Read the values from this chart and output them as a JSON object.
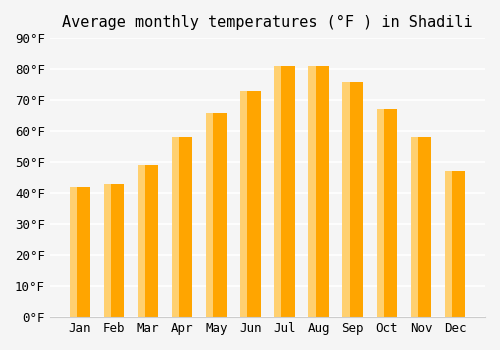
{
  "title": "Average monthly temperatures (°F ) in Shadili",
  "months": [
    "Jan",
    "Feb",
    "Mar",
    "Apr",
    "May",
    "Jun",
    "Jul",
    "Aug",
    "Sep",
    "Oct",
    "Nov",
    "Dec"
  ],
  "values": [
    42,
    43,
    49,
    58,
    66,
    73,
    81,
    81,
    76,
    67,
    58,
    47
  ],
  "bar_color_main": "#FFA500",
  "bar_color_light": "#FFD070",
  "ylim": [
    0,
    90
  ],
  "yticks": [
    0,
    10,
    20,
    30,
    40,
    50,
    60,
    70,
    80,
    90
  ],
  "ylabel_suffix": "°F",
  "background_color": "#f5f5f5",
  "grid_color": "#ffffff",
  "title_fontsize": 11,
  "tick_fontsize": 9
}
